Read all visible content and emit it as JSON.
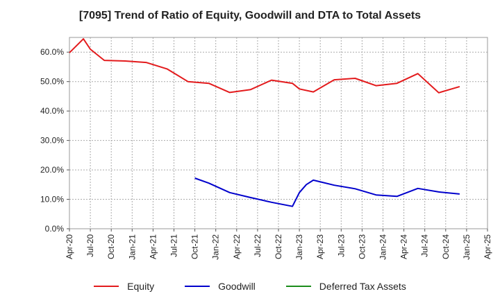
{
  "chart_data": {
    "type": "line",
    "title": "[7095]  Trend of Ratio of Equity, Goodwill and DTA to Total Assets",
    "xlabel": "",
    "ylabel": "",
    "ylim": [
      0,
      65
    ],
    "y_ticks": [
      0,
      10,
      20,
      30,
      40,
      50,
      60
    ],
    "y_tick_labels": [
      "0.0%",
      "10.0%",
      "20.0%",
      "30.0%",
      "40.0%",
      "50.0%",
      "60.0%"
    ],
    "x_ticks": [
      "Apr-20",
      "Jul-20",
      "Oct-20",
      "Jan-21",
      "Apr-21",
      "Jul-21",
      "Oct-21",
      "Jan-22",
      "Apr-22",
      "Jul-22",
      "Oct-22",
      "Jan-23",
      "Apr-23",
      "Jul-23",
      "Oct-23",
      "Jan-24",
      "Apr-24",
      "Jul-24",
      "Oct-24",
      "Jan-25",
      "Apr-25"
    ],
    "grid": true,
    "legend_position": "bottom",
    "series": [
      {
        "name": "Equity",
        "color": "#e31a1c",
        "points": [
          [
            0,
            59.8
          ],
          [
            2,
            64.5
          ],
          [
            3,
            61.0
          ],
          [
            5,
            57.2
          ],
          [
            8,
            57.0
          ],
          [
            11,
            56.5
          ],
          [
            14,
            54.3
          ],
          [
            17,
            50.0
          ],
          [
            20,
            49.4
          ],
          [
            23,
            46.3
          ],
          [
            26,
            47.3
          ],
          [
            29,
            50.5
          ],
          [
            32,
            49.4
          ],
          [
            33,
            47.5
          ],
          [
            35,
            46.5
          ],
          [
            38,
            50.6
          ],
          [
            41,
            51.1
          ],
          [
            44,
            48.6
          ],
          [
            47,
            49.4
          ],
          [
            50,
            52.7
          ],
          [
            53,
            46.2
          ],
          [
            56,
            48.3
          ]
        ]
      },
      {
        "name": "Goodwill",
        "color": "#0000cc",
        "points": [
          [
            18,
            17.2
          ],
          [
            20,
            15.5
          ],
          [
            23,
            12.3
          ],
          [
            26,
            10.6
          ],
          [
            29,
            9.0
          ],
          [
            32,
            7.6
          ],
          [
            33,
            12.3
          ],
          [
            34,
            15.0
          ],
          [
            35,
            16.5
          ],
          [
            38,
            14.8
          ],
          [
            41,
            13.6
          ],
          [
            44,
            11.5
          ],
          [
            47,
            11.0
          ],
          [
            50,
            13.7
          ],
          [
            53,
            12.5
          ],
          [
            56,
            11.8
          ]
        ]
      },
      {
        "name": "Deferred Tax Assets",
        "color": "#1a8c1a",
        "points": []
      }
    ]
  }
}
